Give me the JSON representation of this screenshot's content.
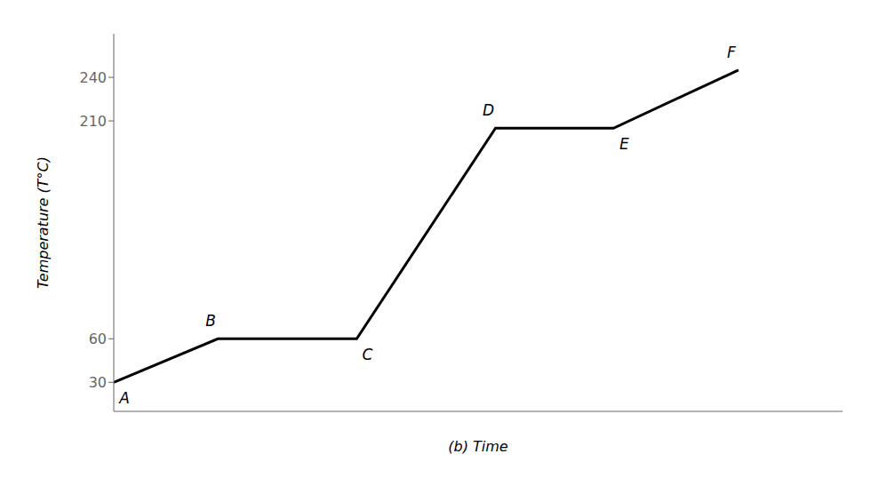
{
  "chart_data": {
    "type": "line",
    "xlabel": "(b) Time",
    "ylabel": "Temperature (T°C)",
    "x": [
      0,
      1.5,
      3.5,
      5.5,
      7.2,
      9.0
    ],
    "values": [
      30,
      60,
      60,
      205,
      205,
      245
    ],
    "color": "#000000",
    "xlim": [
      0,
      10.5
    ],
    "ylim": [
      10,
      270
    ],
    "yticks": [
      30,
      60,
      210,
      240
    ],
    "tick_labels": "y",
    "grid": false,
    "annotations": [
      {
        "text": "A",
        "x": 0,
        "y": 30
      },
      {
        "text": "B",
        "x": 1.5,
        "y": 60
      },
      {
        "text": "C",
        "x": 3.5,
        "y": 60
      },
      {
        "text": "D",
        "x": 5.5,
        "y": 205
      },
      {
        "text": "E",
        "x": 7.2,
        "y": 205
      },
      {
        "text": "F",
        "x": 9.0,
        "y": 245
      }
    ]
  }
}
